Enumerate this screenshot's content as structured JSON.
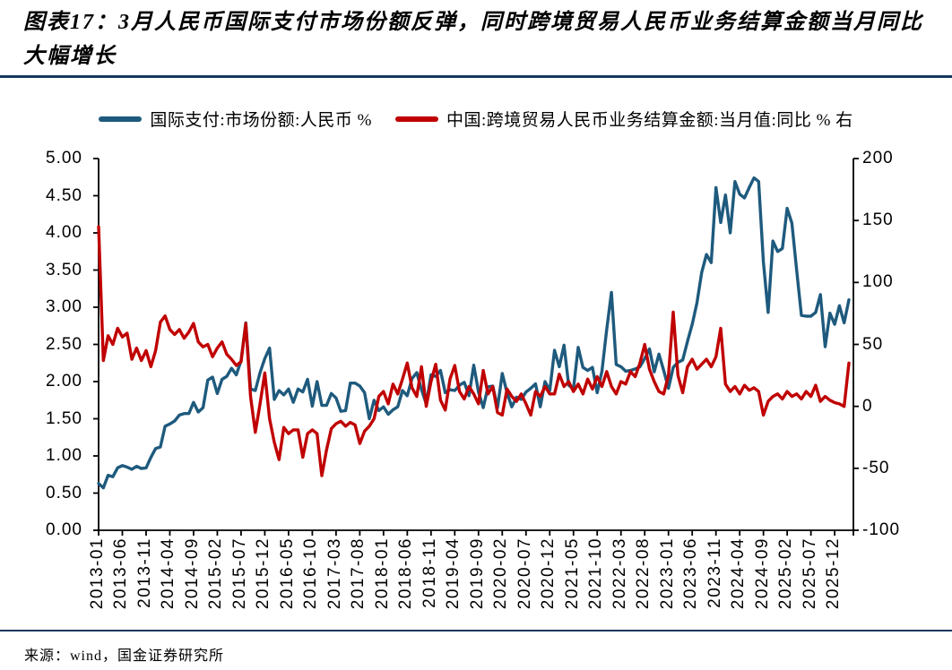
{
  "page": {
    "title": "图表17：3月人民币国际支付市场份额反弹，同时跨境贸易人民币业务结算金额当月同比大幅增长",
    "source": "来源：wind，国金证券研究所",
    "rule_color": "#17375E",
    "background": "#ffffff"
  },
  "chart_data": {
    "type": "line",
    "title": "图表17：3月人民币国际支付市场份额反弹，同时跨境贸易人民币业务结算金额当月同比大幅增长",
    "grid": false,
    "legend_position": "top",
    "axis_color": "#000000",
    "x_start": "2013-01",
    "x_end": "2026-03",
    "x_tick_step_months": 5,
    "x_tick_labels": [
      "2013-01",
      "2013-06",
      "2013-11",
      "2014-04",
      "2014-09",
      "2015-02",
      "2015-07",
      "2015-12",
      "2016-05",
      "2016-10",
      "2017-03",
      "2017-08",
      "2018-01",
      "2018-06",
      "2018-11",
      "2019-04",
      "2019-09",
      "2020-02",
      "2020-07",
      "2020-12",
      "2021-05",
      "2021-10",
      "2022-03",
      "2022-08",
      "2023-01",
      "2023-06",
      "2023-11",
      "2024-04",
      "2024-09",
      "2025-02",
      "2025-07",
      "2025-12"
    ],
    "left_axis": {
      "min": 0,
      "max": 5,
      "step": 0.5,
      "tick_labels": [
        "0.00",
        "0.50",
        "1.00",
        "1.50",
        "2.00",
        "2.50",
        "3.00",
        "3.50",
        "4.00",
        "4.50",
        "5.00"
      ]
    },
    "right_axis": {
      "min": -100,
      "max": 200,
      "step": 50,
      "tick_labels": [
        "-100",
        "-50",
        "0",
        "50",
        "100",
        "150",
        "200"
      ]
    },
    "series": [
      {
        "name": "国际支付:市场份额:人民币 %",
        "axis": "left",
        "color": "#1E5A7D",
        "values": [
          0.63,
          0.57,
          0.74,
          0.72,
          0.84,
          0.87,
          0.85,
          0.82,
          0.86,
          0.83,
          0.84,
          0.98,
          1.1,
          1.12,
          1.4,
          1.43,
          1.47,
          1.55,
          1.57,
          1.57,
          1.72,
          1.59,
          1.65,
          2.02,
          2.06,
          1.84,
          2.03,
          2.07,
          2.18,
          2.09,
          2.28,
          2.79,
          1.9,
          1.88,
          2.12,
          2.31,
          2.45,
          1.76,
          1.88,
          1.82,
          1.9,
          1.72,
          1.9,
          1.86,
          2.03,
          1.67,
          2.0,
          1.68,
          1.68,
          1.84,
          1.78,
          1.6,
          1.61,
          1.98,
          1.98,
          1.94,
          1.85,
          1.5,
          1.75,
          1.61,
          1.66,
          1.56,
          1.62,
          1.66,
          1.88,
          1.81,
          2.04,
          2.12,
          1.89,
          1.7,
          2.09,
          2.07,
          2.15,
          1.85,
          1.89,
          1.88,
          1.95,
          1.99,
          1.81,
          2.22,
          1.86,
          1.65,
          1.93,
          1.94,
          1.65,
          2.11,
          1.85,
          1.66,
          1.79,
          1.76,
          1.86,
          1.91,
          1.97,
          1.66,
          2.0,
          1.88,
          2.42,
          2.2,
          2.49,
          1.95,
          1.9,
          2.46,
          2.19,
          2.15,
          2.19,
          1.85,
          2.14,
          2.7,
          3.2,
          2.23,
          2.2,
          2.14,
          2.15,
          2.17,
          2.2,
          2.31,
          2.44,
          2.13,
          2.37,
          2.15,
          1.91,
          2.19,
          2.26,
          2.29,
          2.54,
          2.77,
          3.06,
          3.47,
          3.71,
          3.6,
          4.61,
          4.14,
          4.51,
          4.0,
          4.69,
          4.52,
          4.47,
          4.61,
          4.74,
          4.69,
          3.61,
          2.93,
          3.89,
          3.75,
          3.79,
          4.33,
          4.13,
          3.5,
          2.89,
          2.88,
          2.88,
          2.93,
          3.17,
          2.47,
          2.92,
          2.77,
          3.02,
          2.79,
          3.1
        ]
      },
      {
        "name": "中国:跨境贸易人民币业务结算金额:当月值:同比 % 右",
        "axis": "right",
        "color": "#C00000",
        "values": [
          145,
          37,
          57,
          50,
          63,
          56,
          59,
          38,
          47,
          37,
          45,
          32,
          45,
          68,
          73,
          62,
          58,
          62,
          55,
          60,
          67,
          52,
          48,
          50,
          40,
          47,
          52,
          42,
          38,
          33,
          36,
          67,
          8,
          -21,
          2,
          27,
          -10,
          -29,
          -43,
          -17,
          -22,
          -19,
          -19,
          -41,
          -22,
          -19,
          -22,
          -56,
          -35,
          -18,
          -14,
          -12,
          -16,
          -13,
          -15,
          -30,
          -20,
          -16,
          -10,
          8,
          12,
          2,
          18,
          10,
          22,
          35,
          15,
          8,
          32,
          0,
          20,
          34,
          5,
          -3,
          22,
          33,
          12,
          6,
          16,
          10,
          2,
          29,
          10,
          16,
          -5,
          -7,
          14,
          8,
          4,
          10,
          2,
          -7,
          12,
          8,
          16,
          10,
          10,
          26,
          16,
          20,
          12,
          18,
          10,
          22,
          14,
          24,
          16,
          28,
          16,
          10,
          20,
          18,
          28,
          24,
          35,
          50,
          30,
          20,
          12,
          10,
          25,
          76,
          25,
          11,
          32,
          38,
          30,
          34,
          38,
          32,
          40,
          63,
          18,
          12,
          16,
          10,
          17,
          13,
          15,
          12,
          -7,
          4,
          8,
          10,
          6,
          12,
          8,
          10,
          6,
          12,
          8,
          17,
          4,
          8,
          5,
          3,
          2,
          0,
          35
        ]
      }
    ]
  }
}
